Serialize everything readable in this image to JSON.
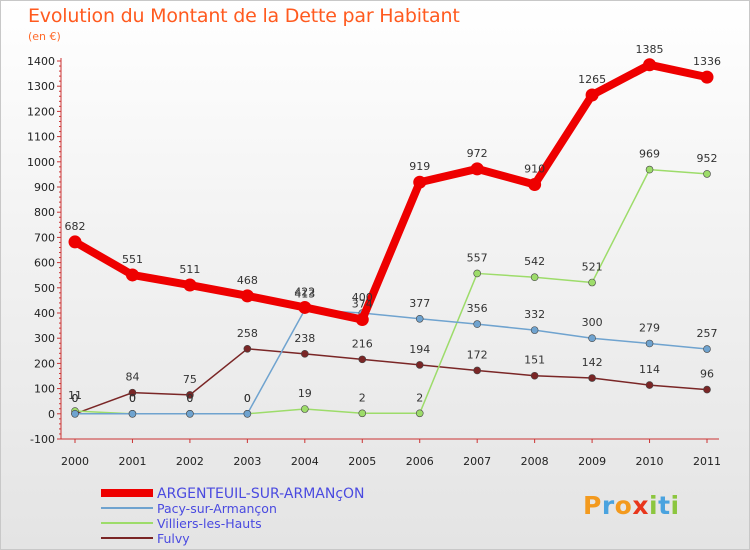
{
  "title": "Evolution du Montant de la Dette par Habitant",
  "subtitle": "(en €)",
  "logo": {
    "text": "Proxiti",
    "letters": [
      {
        "ch": "P",
        "color": "#f39a1e"
      },
      {
        "ch": "r",
        "color": "#4aa3df"
      },
      {
        "ch": "o",
        "color": "#f39a1e"
      },
      {
        "ch": "x",
        "color": "#e8361c"
      },
      {
        "ch": "i",
        "color": "#8cc63f"
      },
      {
        "ch": "t",
        "color": "#4aa3df"
      },
      {
        "ch": "i",
        "color": "#8cc63f"
      }
    ]
  },
  "chart_data": {
    "type": "line",
    "x": [
      "2000",
      "2001",
      "2002",
      "2003",
      "2004",
      "2005",
      "2006",
      "2007",
      "2008",
      "2009",
      "2010",
      "2011"
    ],
    "ylim": [
      -100,
      1400
    ],
    "yticks": [
      -100,
      0,
      100,
      200,
      300,
      400,
      500,
      600,
      700,
      800,
      900,
      1000,
      1100,
      1200,
      1300,
      1400
    ],
    "grid": false,
    "legend_position": "bottom-left",
    "series": [
      {
        "name": "ARGENTEUIL-SUR-ARMANçON",
        "color": "#ee0000",
        "values": [
          682,
          551,
          511,
          468,
          422,
          374,
          919,
          972,
          910,
          1265,
          1385,
          1336
        ],
        "labels": [
          "682",
          "551",
          "511",
          "468",
          "422",
          "374",
          "919",
          "972",
          "910",
          "1265",
          "1385",
          "1336"
        ]
      },
      {
        "name": "Pacy-sur-Armançon",
        "color": "#6fa3cf",
        "values": [
          0,
          0,
          0,
          0,
          413,
          400,
          377,
          356,
          332,
          300,
          279,
          257
        ],
        "labels": [
          "0",
          "0",
          "0",
          "0",
          "413",
          "400",
          "377",
          "356",
          "332",
          "300",
          "279",
          "257"
        ]
      },
      {
        "name": "Villiers-les-Hauts",
        "color": "#9ddc6a",
        "values": [
          11,
          0,
          0,
          0,
          19,
          2,
          2,
          557,
          542,
          521,
          969,
          952
        ],
        "labels": [
          "11",
          "0",
          "0",
          "0",
          "19",
          "2",
          "2",
          "557",
          "542",
          "521",
          "969",
          "952"
        ]
      },
      {
        "name": "Fulvy",
        "color": "#7a2626",
        "values": [
          0,
          84,
          75,
          258,
          238,
          216,
          194,
          172,
          151,
          142,
          114,
          96
        ],
        "labels": [
          "0",
          "84",
          "75",
          "258",
          "238",
          "216",
          "194",
          "172",
          "151",
          "142",
          "114",
          "96"
        ]
      }
    ]
  }
}
